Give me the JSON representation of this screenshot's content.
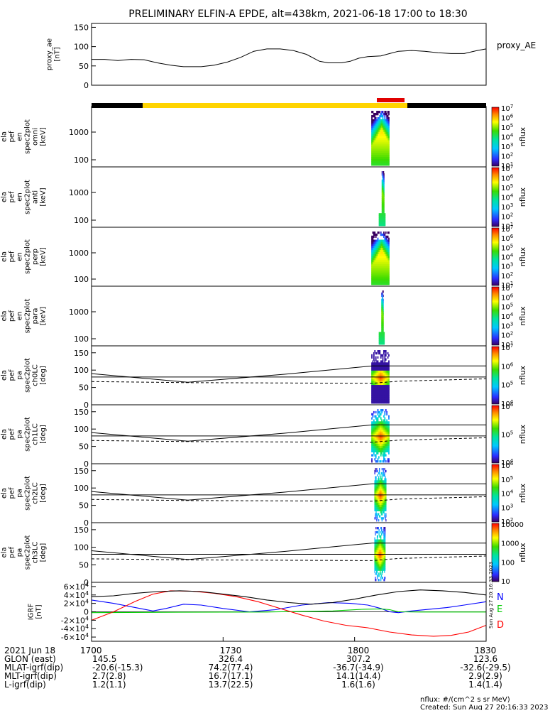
{
  "title": "PRELIMINARY ELFIN-A EPDE, alt=438km, 2021-06-18 17:00 to 18:30",
  "colorbar_label": "nflux",
  "vertical_stamp": "Sun Aug 27 20:16:33 2023",
  "footer": {
    "units": "nflux: #/(cm^2 s sr MeV)",
    "created": "Created: Sun Aug 27 20:16:33 2023"
  },
  "ephemeris": {
    "times": [
      "1700",
      "1730",
      "1800",
      "1830"
    ],
    "rows": [
      {
        "label": "2021 Jun 18",
        "values": [
          "",
          "",
          "",
          ""
        ]
      },
      {
        "label": "GLON (east)",
        "values": [
          "145.5",
          "326.4",
          "307.2",
          "123.6"
        ]
      },
      {
        "label": "MLAT-igrf(dip)",
        "values": [
          "-20.6(-15.3)",
          "74.2(77.4)",
          "-36.7(-34.9)",
          "-32.6(-29.5)"
        ]
      },
      {
        "label": "MLT-igrf(dip)",
        "values": [
          "2.7(2.8)",
          "16.7(17.1)",
          "14.1(14.4)",
          "2.9(2.9)"
        ]
      },
      {
        "label": "L-igrf(dip)",
        "values": [
          "1.2(1.1)",
          "13.7(22.5)",
          "1.6(1.6)",
          "1.4(1.4)"
        ]
      }
    ]
  },
  "chart_data": [
    {
      "type": "line",
      "id": "proxy_ae",
      "ylabel_lines": [
        "proxy_ae",
        "[nT]"
      ],
      "series_label": "proxy_AE",
      "yticks": [
        "0",
        "50",
        "100",
        "150"
      ],
      "ylim": [
        0,
        160
      ],
      "xlim": [
        0,
        90
      ],
      "series": [
        {
          "name": "proxy_AE",
          "points": [
            [
              0,
              67
            ],
            [
              3,
              67
            ],
            [
              6,
              64
            ],
            [
              9,
              67
            ],
            [
              12,
              66
            ],
            [
              15,
              58
            ],
            [
              18,
              52
            ],
            [
              21,
              48
            ],
            [
              25,
              48
            ],
            [
              28,
              52
            ],
            [
              31,
              60
            ],
            [
              34,
              72
            ],
            [
              37,
              88
            ],
            [
              40,
              94
            ],
            [
              43,
              94
            ],
            [
              46,
              90
            ],
            [
              49,
              80
            ],
            [
              52,
              62
            ],
            [
              54,
              58
            ],
            [
              57,
              58
            ],
            [
              59,
              62
            ],
            [
              61,
              70
            ],
            [
              63,
              74
            ],
            [
              66,
              76
            ],
            [
              68,
              82
            ],
            [
              70,
              88
            ],
            [
              73,
              90
            ],
            [
              76,
              88
            ],
            [
              79,
              84
            ],
            [
              82,
              82
            ],
            [
              85,
              82
            ],
            [
              88,
              90
            ],
            [
              90,
              94
            ]
          ]
        }
      ]
    },
    {
      "type": "heatmap",
      "id": "omni",
      "ylabel_lines": [
        "ela",
        "pef",
        "en",
        "spec2plot",
        "omni",
        "[keV]"
      ],
      "yticks": [
        "100",
        "1000"
      ],
      "cbar_ticks": [
        "10^1",
        "10^2",
        "10^3",
        "10^4",
        "10^5",
        "10^6",
        "10^7"
      ],
      "active": [
        63.8,
        67.9
      ]
    },
    {
      "type": "heatmap",
      "id": "anti",
      "ylabel_lines": [
        "ela",
        "pef",
        "en",
        "spec2plot",
        "anti",
        "[keV]"
      ],
      "yticks": [
        "100",
        "1000"
      ],
      "cbar_ticks": [
        "10^1",
        "10^2",
        "10^3",
        "10^4",
        "10^5",
        "10^6",
        "10^7"
      ],
      "active": [
        65.5,
        67.0
      ]
    },
    {
      "type": "heatmap",
      "id": "perp",
      "ylabel_lines": [
        "ela",
        "pef",
        "en",
        "spec2plot",
        "perp",
        "[keV]"
      ],
      "yticks": [
        "100",
        "1000"
      ],
      "cbar_ticks": [
        "10^1",
        "10^2",
        "10^3",
        "10^4",
        "10^5",
        "10^6",
        "10^7"
      ],
      "active": [
        63.8,
        67.9
      ]
    },
    {
      "type": "heatmap",
      "id": "para",
      "ylabel_lines": [
        "ela",
        "pef",
        "en",
        "spec2plot",
        "para",
        "[keV]"
      ],
      "yticks": [
        "100",
        "1000"
      ],
      "cbar_ticks": [
        "10^1",
        "10^2",
        "10^3",
        "10^4",
        "10^5",
        "10^6",
        "10^7"
      ],
      "active": [
        65.5,
        66.8
      ]
    },
    {
      "type": "heatmap",
      "id": "ch0LC",
      "ylabel_lines": [
        "ela",
        "pef",
        "pa",
        "spec2plot",
        "ch0LC",
        "[deg]"
      ],
      "yticks": [
        "0",
        "50",
        "100",
        "150"
      ],
      "cbar_ticks": [
        "10^4",
        "10^5",
        "10^6",
        "10^7"
      ],
      "active": [
        63.8,
        67.9
      ]
    },
    {
      "type": "heatmap",
      "id": "ch1LC",
      "ylabel_lines": [
        "ela",
        "pef",
        "pa",
        "spec2plot",
        "ch1LC",
        "[deg]"
      ],
      "yticks": [
        "0",
        "50",
        "100",
        "150"
      ],
      "cbar_ticks": [
        "10^4",
        "10^5",
        "10^6"
      ],
      "active": [
        63.8,
        67.9
      ]
    },
    {
      "type": "heatmap",
      "id": "ch2LC",
      "ylabel_lines": [
        "ela",
        "pef",
        "pa",
        "spec2plot",
        "ch2LC",
        "[deg]"
      ],
      "yticks": [
        "0",
        "50",
        "100",
        "150"
      ],
      "cbar_ticks": [
        "10^2",
        "10^3",
        "10^4",
        "10^5",
        "10^6"
      ],
      "active": [
        64.5,
        67.2
      ]
    },
    {
      "type": "heatmap",
      "id": "ch3LC",
      "ylabel_lines": [
        "ela",
        "pef",
        "pa",
        "spec2plot",
        "ch3LC",
        "[deg]"
      ],
      "yticks": [
        "0",
        "50",
        "100",
        "150"
      ],
      "cbar_ticks": [
        "10",
        "100",
        "1000",
        "10000"
      ],
      "active": [
        64.5,
        67.0
      ]
    },
    {
      "type": "line",
      "id": "igrf",
      "ylabel_lines": [
        "IGRF",
        "[nT]"
      ],
      "yticks": [
        "-6×10^4",
        "-4×10^4",
        "-2×10^4",
        "0",
        "2×10^4",
        "4×10^4",
        "6×10^4"
      ],
      "ylim": [
        -70000,
        70000
      ],
      "xlim": [
        0,
        90
      ],
      "series": [
        {
          "name": "N",
          "color": "#0000ff",
          "points": [
            [
              0,
              28000
            ],
            [
              5,
              20000
            ],
            [
              10,
              10000
            ],
            [
              14,
              2000
            ],
            [
              17,
              8000
            ],
            [
              21,
              18000
            ],
            [
              25,
              16000
            ],
            [
              30,
              8000
            ],
            [
              36,
              0
            ],
            [
              42,
              5000
            ],
            [
              48,
              16000
            ],
            [
              54,
              22000
            ],
            [
              59,
              20000
            ],
            [
              63,
              16000
            ],
            [
              66,
              8000
            ],
            [
              68,
              0
            ],
            [
              70,
              -2000
            ],
            [
              73,
              2000
            ],
            [
              77,
              6000
            ],
            [
              81,
              10000
            ],
            [
              85,
              16000
            ],
            [
              90,
              24000
            ]
          ]
        },
        {
          "name": "E",
          "color": "#00cc00",
          "points": [
            [
              0,
              -2000
            ],
            [
              20,
              -1000
            ],
            [
              40,
              -500
            ],
            [
              55,
              2000
            ],
            [
              62,
              6000
            ],
            [
              66,
              7000
            ],
            [
              68,
              5000
            ],
            [
              70,
              0
            ],
            [
              75,
              -500
            ],
            [
              90,
              -500
            ]
          ]
        },
        {
          "name": "D",
          "color": "#ff0000",
          "points": [
            [
              0,
              -20000
            ],
            [
              5,
              0
            ],
            [
              10,
              25000
            ],
            [
              14,
              42000
            ],
            [
              18,
              50000
            ],
            [
              23,
              49000
            ],
            [
              28,
              44000
            ],
            [
              33,
              36000
            ],
            [
              38,
              24000
            ],
            [
              43,
              8000
            ],
            [
              48,
              -8000
            ],
            [
              53,
              -22000
            ],
            [
              58,
              -32000
            ],
            [
              63,
              -38000
            ],
            [
              68,
              -48000
            ],
            [
              73,
              -55000
            ],
            [
              78,
              -58000
            ],
            [
              82,
              -56000
            ],
            [
              86,
              -48000
            ],
            [
              90,
              -32000
            ]
          ]
        },
        {
          "name": "",
          "color": "#000000",
          "points": [
            [
              0,
              36000
            ],
            [
              5,
              38000
            ],
            [
              10,
              44000
            ],
            [
              15,
              48000
            ],
            [
              20,
              50000
            ],
            [
              25,
              48000
            ],
            [
              30,
              42000
            ],
            [
              35,
              36000
            ],
            [
              40,
              28000
            ],
            [
              45,
              22000
            ],
            [
              50,
              18000
            ],
            [
              55,
              22000
            ],
            [
              60,
              30000
            ],
            [
              65,
              40000
            ],
            [
              70,
              48000
            ],
            [
              75,
              52000
            ],
            [
              80,
              50000
            ],
            [
              85,
              46000
            ],
            [
              90,
              40000
            ]
          ]
        }
      ]
    }
  ]
}
